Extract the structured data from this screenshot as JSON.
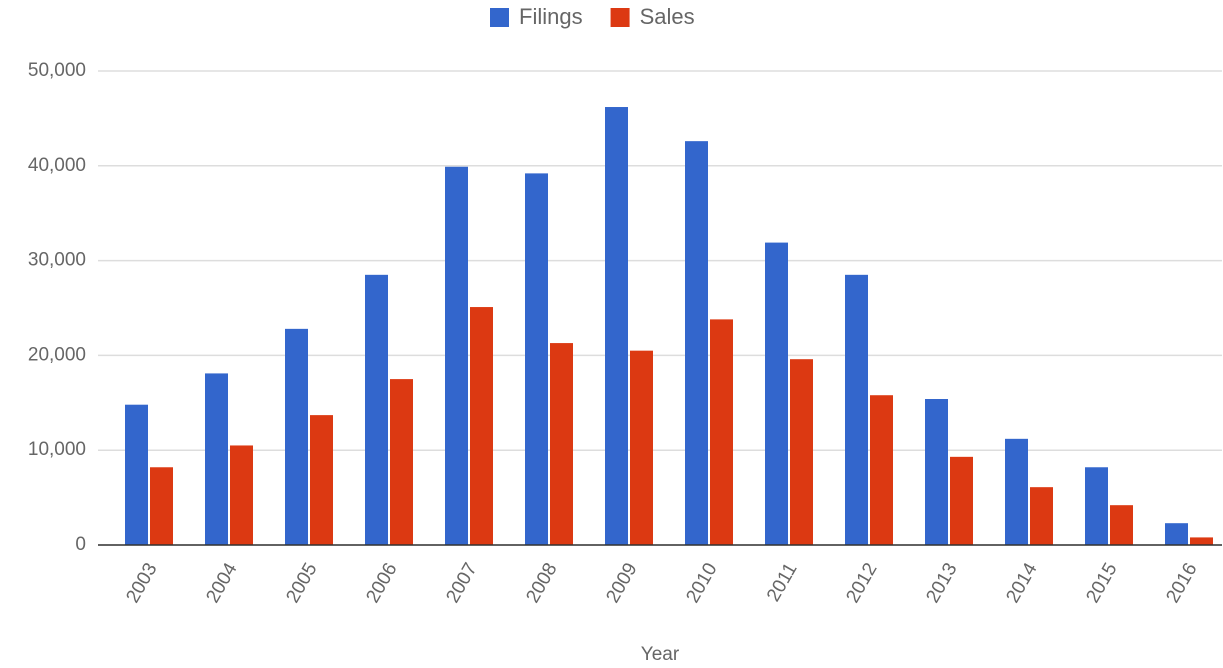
{
  "chart_data": {
    "type": "bar",
    "x_label": "Year",
    "categories": [
      "2003",
      "2004",
      "2005",
      "2006",
      "2007",
      "2008",
      "2009",
      "2010",
      "2011",
      "2012",
      "2013",
      "2014",
      "2015",
      "2016"
    ],
    "series": [
      {
        "name": "Filings",
        "color": "#3366cc",
        "values": [
          14800,
          18100,
          22800,
          28500,
          39900,
          39200,
          46200,
          42600,
          31900,
          28500,
          15400,
          11200,
          8200,
          2300
        ]
      },
      {
        "name": "Sales",
        "color": "#dc3912",
        "values": [
          8200,
          10500,
          13700,
          17500,
          25100,
          21300,
          20500,
          23800,
          19600,
          15800,
          9300,
          6100,
          4200,
          800
        ]
      }
    ],
    "ylim": [
      0,
      50000
    ],
    "yticks": [
      0,
      {
        "value": 10000,
        "label": "10,000"
      },
      {
        "value": 20000,
        "label": "20,000"
      },
      {
        "value": 30000,
        "label": "30,000"
      },
      {
        "value": 40000,
        "label": "40,000"
      },
      {
        "value": 50000,
        "label": "50,000"
      }
    ],
    "grid": true,
    "legend": "top"
  }
}
